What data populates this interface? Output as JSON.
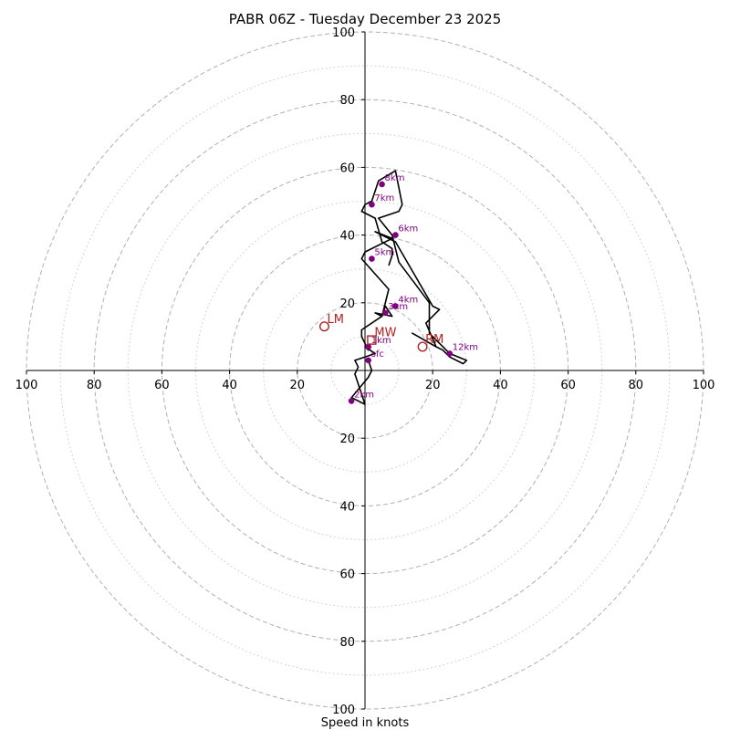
{
  "chart_data": {
    "type": "line",
    "title": "PABR 06Z - Tuesday December 23 2025",
    "xlabel": "Speed in knots",
    "ring_max": 100,
    "major_rings": [
      20,
      40,
      60,
      80,
      100
    ],
    "minor_rings": [
      10,
      30,
      50,
      70,
      90
    ],
    "tick_labels": {
      "right": [
        "20",
        "40",
        "60",
        "80",
        "100"
      ],
      "left": [
        "20",
        "40",
        "60",
        "80",
        "100"
      ],
      "up": [
        "20",
        "40",
        "60",
        "80",
        "100"
      ],
      "down": [
        "20",
        "40",
        "60",
        "80",
        "100"
      ]
    },
    "colors": {
      "profile": "#000000",
      "height_marker": "#800080",
      "motion": "#b22222",
      "grid": "#b0b0b0"
    },
    "profile": [
      [
        1,
        3
      ],
      [
        2,
        0
      ],
      [
        1,
        -2
      ],
      [
        -4,
        -8
      ],
      [
        0,
        -10
      ],
      [
        -3,
        -1
      ],
      [
        -2,
        1
      ],
      [
        -3,
        3
      ],
      [
        0,
        4
      ],
      [
        3,
        5
      ],
      [
        0,
        7
      ],
      [
        1,
        6
      ],
      [
        -1,
        10
      ],
      [
        -1,
        10
      ],
      [
        -1,
        12
      ],
      [
        5,
        16
      ],
      [
        6,
        19
      ],
      [
        8,
        16
      ],
      [
        3,
        17
      ],
      [
        5,
        16
      ],
      [
        7,
        24
      ],
      [
        -1,
        33
      ],
      [
        0,
        35
      ],
      [
        8,
        39
      ],
      [
        3,
        41
      ],
      [
        9,
        38
      ],
      [
        20,
        19
      ],
      [
        22,
        18
      ],
      [
        20,
        16
      ],
      [
        18,
        14
      ],
      [
        21,
        7
      ],
      [
        14,
        11
      ],
      [
        21,
        7
      ],
      [
        23,
        6
      ],
      [
        25,
        4
      ],
      [
        29,
        2
      ],
      [
        30,
        3
      ],
      [
        25,
        5
      ],
      [
        25,
        5
      ],
      [
        19,
        11
      ],
      [
        19,
        20
      ],
      [
        10,
        32
      ],
      [
        8,
        40
      ],
      [
        4,
        45
      ],
      [
        10,
        47
      ],
      [
        11,
        49
      ],
      [
        9,
        59
      ],
      [
        4,
        56
      ],
      [
        2,
        50
      ],
      [
        0,
        49
      ],
      [
        -1,
        47
      ],
      [
        3,
        45
      ],
      [
        5,
        38
      ],
      [
        8,
        36
      ],
      [
        8,
        34
      ],
      [
        7,
        31
      ]
    ],
    "height_markers": [
      {
        "label": "sfc",
        "u": 1,
        "v": 3
      },
      {
        "label": "1km",
        "u": 1,
        "v": 7
      },
      {
        "label": "2km",
        "u": -4,
        "v": -9
      },
      {
        "label": "3km",
        "u": 6,
        "v": 17
      },
      {
        "label": "4km",
        "u": 9,
        "v": 19
      },
      {
        "label": "5km",
        "u": 2,
        "v": 33
      },
      {
        "label": "6km",
        "u": 9,
        "v": 40
      },
      {
        "label": "7km",
        "u": 2,
        "v": 49
      },
      {
        "label": "8km",
        "u": 5,
        "v": 55
      },
      {
        "label": "12km",
        "u": 25,
        "v": 5
      }
    ],
    "storm_motion": [
      {
        "label": "LM",
        "u": -12,
        "v": 13,
        "marker": "circle"
      },
      {
        "label": "MW",
        "u": 2,
        "v": 9,
        "marker": "square"
      },
      {
        "label": "RM",
        "u": 17,
        "v": 7,
        "marker": "circle"
      }
    ]
  }
}
